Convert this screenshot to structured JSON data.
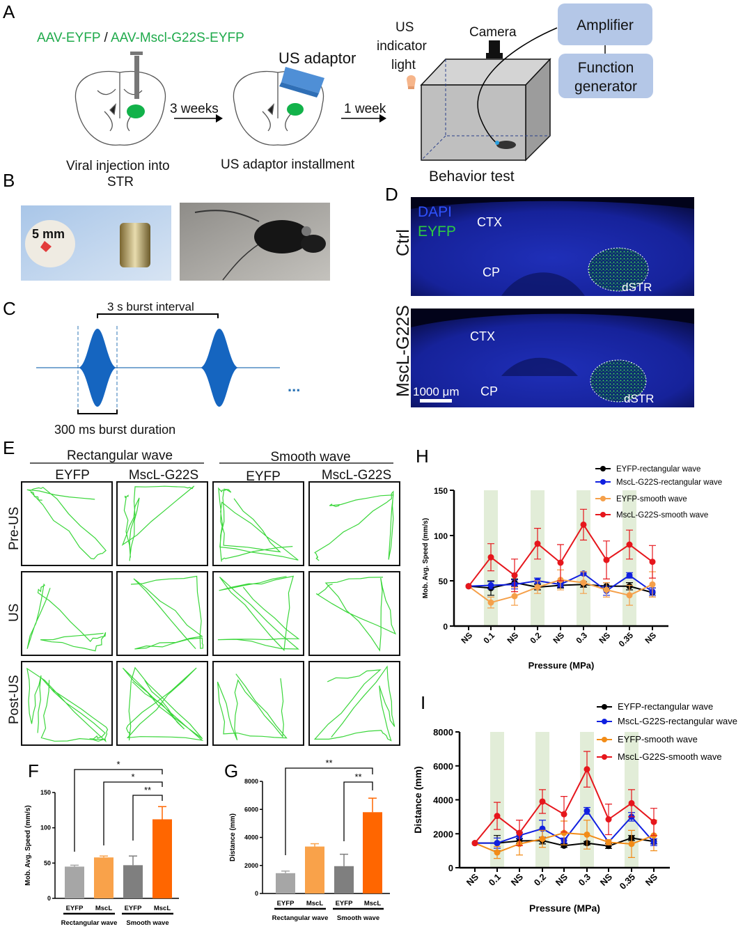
{
  "panel_a": {
    "label": "A",
    "construct_a": "AAV-EYFP",
    "construct_sep": " / ",
    "construct_b": "AAV-Mscl-G22S-EYFP",
    "step1": "3 weeks",
    "step2": "1 week",
    "caption1": [
      "Viral injection into",
      "STR"
    ],
    "caption2": "US adaptor installment",
    "adaptor_label": "US adaptor",
    "indicator_lines": [
      "US",
      "indicator",
      "light"
    ],
    "camera": "Camera",
    "amplifier": "Amplifier",
    "function_generator": [
      "Function",
      "generator"
    ],
    "behavior": "Behavior test",
    "colors": {
      "green": "#1faa4b",
      "box": "#b4c7e7"
    }
  },
  "panel_b": {
    "label": "B",
    "scale": "5 mm"
  },
  "panel_c": {
    "label": "C",
    "interval": "3 s burst interval",
    "duration": "300 ms burst duration",
    "ellipsis": "..."
  },
  "panel_d": {
    "label": "D",
    "dapi": "DAPI",
    "eyfp": "EYFP",
    "rows": [
      "Ctrl",
      "MscL-G22S"
    ],
    "ctx": "CTX",
    "cp": "CP",
    "dstr": "dSTR",
    "scale": "1000 μm"
  },
  "panel_e": {
    "label": "E",
    "groups": [
      "Rectangular wave",
      "Smooth wave"
    ],
    "columns": [
      "EYFP",
      "MscL-G22S",
      "EYFP",
      "MscL-G22S"
    ],
    "rows": [
      "Pre-US",
      "US",
      "Post-US"
    ]
  },
  "chart_data": [
    {
      "panel": "F",
      "type": "bar",
      "ylabel": "Mob. Avg. Speed (mm/s)",
      "ylim": [
        0,
        150
      ],
      "yticks": [
        "0",
        "50",
        "100",
        "150"
      ],
      "categories": [
        "EYFP",
        "MscL",
        "EYFP",
        "MscL"
      ],
      "group_labels": [
        "Rectangular wave",
        "Smooth wave"
      ],
      "values": [
        45,
        58,
        47,
        112
      ],
      "errors": [
        2,
        2,
        13,
        18
      ],
      "colors": [
        "#a6a6a6",
        "#f9a24a",
        "#7f7f7f",
        "#ff6600"
      ],
      "significance": [
        {
          "from": 0,
          "to": 3,
          "label": "*"
        },
        {
          "from": 1,
          "to": 3,
          "label": "*"
        },
        {
          "from": 2,
          "to": 3,
          "label": "**"
        }
      ]
    },
    {
      "panel": "G",
      "type": "bar",
      "ylabel": "Distance (mm)",
      "ylim": [
        0,
        8000
      ],
      "yticks": [
        "0",
        "2000",
        "4000",
        "6000",
        "8000"
      ],
      "categories": [
        "EYFP",
        "MscL",
        "EYFP",
        "MscL"
      ],
      "group_labels": [
        "Rectangular wave",
        "Smooth wave"
      ],
      "values": [
        1450,
        3350,
        1950,
        5800
      ],
      "errors": [
        150,
        200,
        850,
        1000
      ],
      "colors": [
        "#a6a6a6",
        "#f9a24a",
        "#7f7f7f",
        "#ff6600"
      ],
      "significance": [
        {
          "from": 0,
          "to": 3,
          "label": "**"
        },
        {
          "from": 2,
          "to": 3,
          "label": "**"
        }
      ]
    },
    {
      "panel": "H",
      "type": "line",
      "xlabel": "Pressure (MPa)",
      "ylabel": "Mob. Avg. Speed (mm/s)",
      "ylim": [
        0,
        150
      ],
      "yticks": [
        "0",
        "50",
        "100",
        "150"
      ],
      "x": [
        "NS",
        "0.1",
        "NS",
        "0.2",
        "NS",
        "0.3",
        "NS",
        "0.35",
        "NS"
      ],
      "highlighted": [
        "0.1",
        "0.2",
        "0.3",
        "0.35"
      ],
      "legend_position": "top-right",
      "series": [
        {
          "name": "EYFP-rectangular wave",
          "color": "#000000",
          "values": [
            44,
            42,
            48,
            43,
            45,
            46,
            44,
            44,
            37
          ],
          "errors": [
            0,
            8,
            4,
            3,
            3,
            3,
            4,
            4,
            5
          ]
        },
        {
          "name": "MscL-G22S-rectangular wave",
          "color": "#1020e0",
          "values": [
            44,
            45,
            46,
            50,
            46,
            58,
            39,
            56,
            38
          ],
          "errors": [
            0,
            4,
            5,
            3,
            3,
            2,
            5,
            3,
            4
          ]
        },
        {
          "name": "EYFP-smooth wave",
          "color": "#f5a04a",
          "values": [
            44,
            26,
            33,
            43,
            51,
            48,
            40,
            34,
            46
          ],
          "errors": [
            0,
            6,
            10,
            7,
            11,
            12,
            8,
            11,
            14
          ]
        },
        {
          "name": "MscL-G22S-smooth wave",
          "color": "#e6161c",
          "values": [
            44,
            76,
            56,
            91,
            70,
            112,
            73,
            90,
            71
          ],
          "errors": [
            0,
            15,
            18,
            17,
            20,
            17,
            21,
            16,
            18
          ]
        }
      ]
    },
    {
      "panel": "I",
      "type": "line",
      "xlabel": "Pressure (MPa)",
      "ylabel": "Distance (mm)",
      "ylim": [
        0,
        8000
      ],
      "yticks": [
        "0",
        "2000",
        "4000",
        "6000",
        "8000"
      ],
      "x": [
        "NS",
        "0.1",
        "NS",
        "0.2",
        "NS",
        "0.3",
        "NS",
        "0.35",
        "NS"
      ],
      "highlighted": [
        "0.1",
        "0.2",
        "0.3",
        "0.35"
      ],
      "legend_position": "top-right",
      "series": [
        {
          "name": "EYFP-rectangular wave",
          "color": "#000000",
          "values": [
            1450,
            1450,
            1580,
            1600,
            1300,
            1450,
            1280,
            1750,
            1550
          ],
          "errors": [
            0,
            450,
            150,
            200,
            100,
            100,
            150,
            150,
            150
          ]
        },
        {
          "name": "MscL-G22S-rectangular wave",
          "color": "#1020e0",
          "values": [
            1450,
            1450,
            1900,
            2300,
            1600,
            3350,
            1500,
            3000,
            1500
          ],
          "errors": [
            0,
            300,
            200,
            500,
            150,
            200,
            150,
            250,
            200
          ]
        },
        {
          "name": "EYFP-smooth wave",
          "color": "#f28c18",
          "values": [
            1450,
            900,
            1400,
            1700,
            2050,
            1950,
            1500,
            1400,
            1900
          ],
          "errors": [
            0,
            350,
            650,
            500,
            700,
            850,
            150,
            800,
            900
          ]
        },
        {
          "name": "MscL-G22S-smooth wave",
          "color": "#e6161c",
          "values": [
            1450,
            3050,
            2050,
            3900,
            3150,
            5800,
            2850,
            3800,
            2700
          ],
          "errors": [
            0,
            800,
            750,
            700,
            1050,
            1050,
            900,
            800,
            800
          ]
        }
      ]
    }
  ]
}
